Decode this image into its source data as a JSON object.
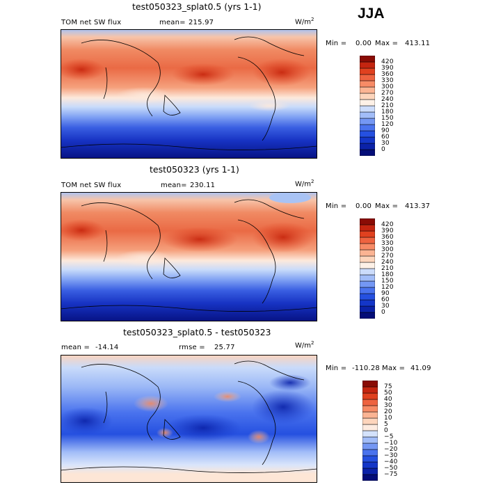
{
  "season": "JJA",
  "chart_data": [
    {
      "type": "heatmap",
      "title": "test050323_splat0.5 (yrs 1-1)",
      "variable": "TOM net SW flux",
      "mean_label": "mean=",
      "mean": "215.97",
      "units_base": "W/m",
      "units_exp": "2",
      "min_label": "Min =",
      "min": "0.00",
      "max_label": "Max =",
      "max": "413.11",
      "colorbar_levels": [
        "0",
        "30",
        "60",
        "90",
        "120",
        "150",
        "180",
        "210",
        "240",
        "270",
        "300",
        "330",
        "360",
        "390",
        "420"
      ],
      "colorbar_colors": [
        "#040d78",
        "#0b22a8",
        "#1436c8",
        "#2550e0",
        "#4a73ee",
        "#7497f4",
        "#a2bdf8",
        "#ccdcfb",
        "#fdf1e7",
        "#fdd5bc",
        "#fbb493",
        "#f78b66",
        "#ee6340",
        "#e0411f",
        "#c42510",
        "#8a0c05"
      ]
    },
    {
      "type": "heatmap",
      "title": "test050323 (yrs 1-1)",
      "variable": "TOM net SW flux",
      "mean_label": "mean=",
      "mean": "230.11",
      "units_base": "W/m",
      "units_exp": "2",
      "min_label": "Min =",
      "min": "0.00",
      "max_label": "Max =",
      "max": "413.37",
      "colorbar_levels": [
        "0",
        "30",
        "60",
        "90",
        "120",
        "150",
        "180",
        "210",
        "240",
        "270",
        "300",
        "330",
        "360",
        "390",
        "420"
      ],
      "colorbar_colors": [
        "#040d78",
        "#0b22a8",
        "#1436c8",
        "#2550e0",
        "#4a73ee",
        "#7497f4",
        "#a2bdf8",
        "#ccdcfb",
        "#fdf1e7",
        "#fdd5bc",
        "#fbb493",
        "#f78b66",
        "#ee6340",
        "#e0411f",
        "#c42510",
        "#8a0c05"
      ]
    },
    {
      "type": "heatmap",
      "title": "test050323_splat0.5 - test050323",
      "mean_label": "mean =",
      "mean": "-14.14",
      "rmse_label": "rmse =",
      "rmse": "25.77",
      "units_base": "W/m",
      "units_exp": "2",
      "min_label": "Min =",
      "min": "-110.28",
      "max_label": "Max =",
      "max": "41.09",
      "colorbar_levels": [
        "−75",
        "−50",
        "−40",
        "−30",
        "−20",
        "−10",
        "−5",
        "0",
        "5",
        "10",
        "20",
        "30",
        "40",
        "50",
        "75"
      ],
      "colorbar_colors": [
        "#040d78",
        "#0b22a8",
        "#1436c8",
        "#2550e0",
        "#4a73ee",
        "#7497f4",
        "#a2bdf8",
        "#d4e2fb",
        "#fdebe0",
        "#fdd5bc",
        "#fbb493",
        "#f78b66",
        "#ee6340",
        "#e0411f",
        "#c42510",
        "#8a0c05"
      ]
    }
  ]
}
